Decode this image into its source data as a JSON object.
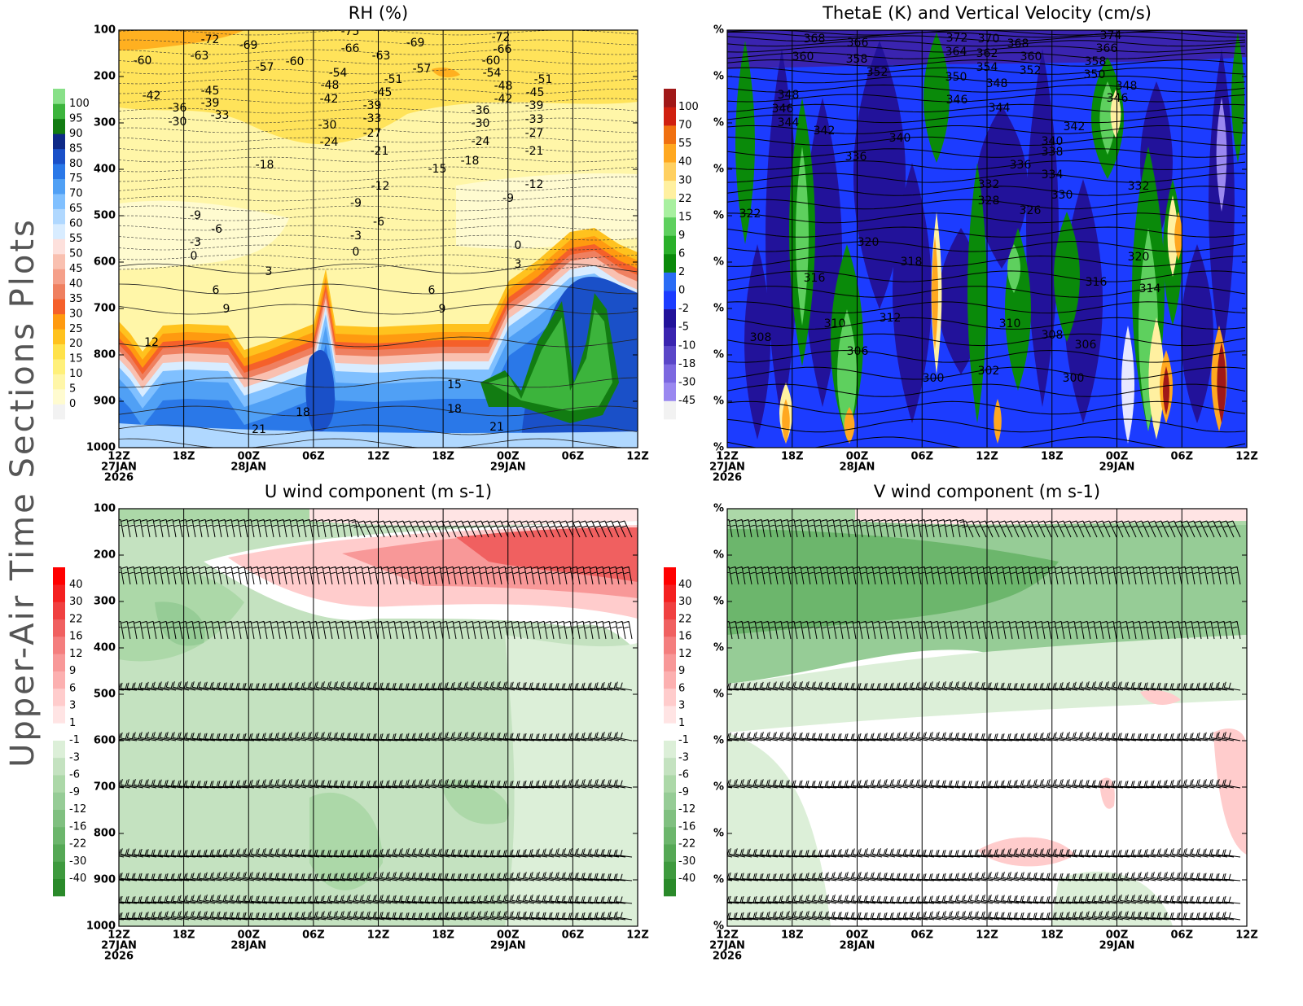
{
  "title": "Upper-Air Time Sections Plots",
  "chart_data": [
    {
      "type": "contour",
      "title": "RH (%)",
      "xlim": [
        0,
        48
      ],
      "xticks": [
        {
          "value": 0,
          "label": "12Z"
        },
        {
          "value": 6,
          "label": "18Z"
        },
        {
          "value": 12,
          "label": "00Z"
        },
        {
          "value": 18,
          "label": "06Z"
        },
        {
          "value": 24,
          "label": "12Z"
        },
        {
          "value": 30,
          "label": "18Z"
        },
        {
          "value": 36,
          "label": "00Z"
        },
        {
          "value": 42,
          "label": "06Z"
        },
        {
          "value": 48,
          "label": "12Z"
        }
      ],
      "x_dates": [
        {
          "value": 0,
          "label": "27JAN"
        },
        {
          "value": 12,
          "label": "28JAN"
        },
        {
          "value": 36,
          "label": "29JAN"
        }
      ],
      "x_year": {
        "value": 0,
        "label": "2026"
      },
      "ylim": [
        1000,
        100
      ],
      "yticks": [
        100,
        200,
        300,
        400,
        500,
        600,
        700,
        800,
        900,
        1000
      ],
      "grid": true,
      "colorbar": {
        "levels": [
          0,
          5,
          10,
          15,
          20,
          25,
          30,
          35,
          40,
          45,
          50,
          55,
          60,
          65,
          70,
          75,
          80,
          85,
          90,
          95,
          100
        ],
        "colors": [
          "#f2f2f2",
          "#fffbd0",
          "#fff6a8",
          "#fff07a",
          "#ffe24a",
          "#ffc21e",
          "#ff9a10",
          "#f5602a",
          "#ef8060",
          "#f5a08a",
          "#f9c0b0",
          "#fde0dc",
          "#d8ecff",
          "#b0d8ff",
          "#80c0ff",
          "#50a0f5",
          "#2a78e8",
          "#1a50c8",
          "#0e2a88",
          "#127c12",
          "#3cb43c",
          "#88e088"
        ]
      },
      "contour_labels": [
        -75,
        -72,
        -60,
        -63,
        -69,
        -57,
        -60,
        -66,
        -63,
        -69,
        -57,
        -72,
        -66,
        -60,
        -54,
        -54,
        -48,
        -42,
        -51,
        -45,
        -39,
        -33,
        -27,
        -21,
        -30,
        -24,
        -18,
        -15,
        -18,
        -12,
        -9,
        -6,
        -3,
        0,
        -48,
        -42,
        -51,
        -45,
        -39,
        -33,
        -27,
        -21,
        -36,
        -30,
        -24,
        -12,
        -9,
        0,
        3,
        6,
        9,
        -42,
        -36,
        -30,
        -45,
        -39,
        -33,
        -9,
        -6,
        -3,
        0,
        3,
        6,
        9,
        12,
        15,
        18,
        18,
        21,
        21
      ]
    },
    {
      "type": "contour",
      "title": "ThetaE (K) and Vertical Velocity (cm/s)",
      "xlim": [
        0,
        48
      ],
      "xticks": [
        {
          "value": 0,
          "label": "12Z"
        },
        {
          "value": 6,
          "label": "18Z"
        },
        {
          "value": 12,
          "label": "00Z"
        },
        {
          "value": 18,
          "label": "06Z"
        },
        {
          "value": 24,
          "label": "12Z"
        },
        {
          "value": 30,
          "label": "18Z"
        },
        {
          "value": 36,
          "label": "00Z"
        },
        {
          "value": 42,
          "label": "06Z"
        },
        {
          "value": 48,
          "label": "12Z"
        }
      ],
      "x_dates": [
        {
          "value": 0,
          "label": "27JAN"
        },
        {
          "value": 12,
          "label": "28JAN"
        },
        {
          "value": 36,
          "label": "29JAN"
        }
      ],
      "x_year": {
        "value": 0,
        "label": "2026"
      },
      "ylim": [
        1000,
        100
      ],
      "yticks": [
        {
          "value": 100,
          "label": "%"
        },
        {
          "value": 200,
          "label": "%"
        },
        {
          "value": 300,
          "label": "%"
        },
        {
          "value": 400,
          "label": "%"
        },
        {
          "value": 500,
          "label": "%"
        },
        {
          "value": 600,
          "label": "%"
        },
        {
          "value": 700,
          "label": "%"
        },
        {
          "value": 800,
          "label": "%"
        },
        {
          "value": 900,
          "label": "%"
        },
        {
          "value": 1000,
          "label": "%"
        }
      ],
      "grid": true,
      "colorbar": {
        "levels": [
          -45,
          -30,
          -18,
          -10,
          -5,
          -2,
          0,
          2,
          6,
          9,
          15,
          22,
          30,
          40,
          55,
          70,
          100
        ],
        "colors": [
          "#f2f2f2",
          "#9a88f0",
          "#7c68e0",
          "#5a46c8",
          "#3a24b0",
          "#22129a",
          "#1c3cff",
          "#2a6cf5",
          "#0a8a0a",
          "#2ab02a",
          "#5ed05e",
          "#a8f0a0",
          "#fff0a0",
          "#ffd060",
          "#ffa820",
          "#f07010",
          "#d02010",
          "#a01818"
        ]
      },
      "contour_labels": [
        368,
        366,
        360,
        358,
        352,
        372,
        370,
        368,
        364,
        362,
        360,
        354,
        352,
        350,
        348,
        374,
        366,
        358,
        350,
        348,
        346,
        348,
        346,
        344,
        342,
        346,
        344,
        340,
        336,
        336,
        342,
        340,
        338,
        334,
        332,
        332,
        330,
        328,
        326,
        322,
        320,
        318,
        320,
        316,
        316,
        314,
        312,
        310,
        310,
        308,
        308,
        306,
        306,
        302,
        300,
        300
      ]
    },
    {
      "type": "contour",
      "title": "U wind component (m s-1)",
      "xlim": [
        0,
        48
      ],
      "xticks": [
        {
          "value": 0,
          "label": "12Z"
        },
        {
          "value": 6,
          "label": "18Z"
        },
        {
          "value": 12,
          "label": "00Z"
        },
        {
          "value": 18,
          "label": "06Z"
        },
        {
          "value": 24,
          "label": "12Z"
        },
        {
          "value": 30,
          "label": "18Z"
        },
        {
          "value": 36,
          "label": "00Z"
        },
        {
          "value": 42,
          "label": "06Z"
        },
        {
          "value": 48,
          "label": "12Z"
        }
      ],
      "x_dates": [
        {
          "value": 0,
          "label": "27JAN"
        },
        {
          "value": 12,
          "label": "28JAN"
        },
        {
          "value": 36,
          "label": "29JAN"
        }
      ],
      "x_year": {
        "value": 0,
        "label": "2026"
      },
      "ylim": [
        1000,
        100
      ],
      "yticks": [
        100,
        200,
        300,
        400,
        500,
        600,
        700,
        800,
        900,
        1000
      ],
      "grid": true,
      "wind_barbs": true,
      "colorbar": {
        "levels": [
          -40,
          -30,
          -22,
          -16,
          -12,
          -9,
          -6,
          -3,
          -1,
          1,
          3,
          6,
          9,
          12,
          16,
          22,
          30,
          40
        ],
        "colors": [
          "#2a8a2a",
          "#3e9a3e",
          "#55a855",
          "#6cb66c",
          "#80c080",
          "#96cc96",
          "#acd8a8",
          "#c4e2c0",
          "#dcefd8",
          "#ffffff",
          "#ffe4e4",
          "#ffcccc",
          "#fcb0b0",
          "#f89898",
          "#f47e7e",
          "#f06060",
          "#f04040",
          "#f42020",
          "#ff0000"
        ]
      }
    },
    {
      "type": "contour",
      "title": "V wind component (m s-1)",
      "xlim": [
        0,
        48
      ],
      "xticks": [
        {
          "value": 0,
          "label": "12Z"
        },
        {
          "value": 6,
          "label": "18Z"
        },
        {
          "value": 12,
          "label": "00Z"
        },
        {
          "value": 18,
          "label": "06Z"
        },
        {
          "value": 24,
          "label": "12Z"
        },
        {
          "value": 30,
          "label": "18Z"
        },
        {
          "value": 36,
          "label": "00Z"
        },
        {
          "value": 42,
          "label": "06Z"
        },
        {
          "value": 48,
          "label": "12Z"
        }
      ],
      "x_dates": [
        {
          "value": 0,
          "label": "27JAN"
        },
        {
          "value": 12,
          "label": "28JAN"
        },
        {
          "value": 36,
          "label": "29JAN"
        }
      ],
      "x_year": {
        "value": 0,
        "label": "2026"
      },
      "ylim": [
        1000,
        100
      ],
      "yticks": [
        {
          "value": 100,
          "label": "%"
        },
        {
          "value": 200,
          "label": "%"
        },
        {
          "value": 300,
          "label": "%"
        },
        {
          "value": 400,
          "label": "%"
        },
        {
          "value": 500,
          "label": "%"
        },
        {
          "value": 600,
          "label": "%"
        },
        {
          "value": 700,
          "label": "%"
        },
        {
          "value": 800,
          "label": "%"
        },
        {
          "value": 900,
          "label": "%"
        },
        {
          "value": 1000,
          "label": "%"
        }
      ],
      "grid": true,
      "wind_barbs": true,
      "colorbar": {
        "levels": [
          -40,
          -30,
          -22,
          -16,
          -12,
          -9,
          -6,
          -3,
          -1,
          1,
          3,
          6,
          9,
          12,
          16,
          22,
          30,
          40
        ],
        "colors": [
          "#2a8a2a",
          "#3e9a3e",
          "#55a855",
          "#6cb66c",
          "#80c080",
          "#96cc96",
          "#acd8a8",
          "#c4e2c0",
          "#dcefd8",
          "#ffffff",
          "#ffe4e4",
          "#ffcccc",
          "#fcb0b0",
          "#f89898",
          "#f47e7e",
          "#f06060",
          "#f04040",
          "#f42020",
          "#ff0000"
        ]
      }
    }
  ]
}
